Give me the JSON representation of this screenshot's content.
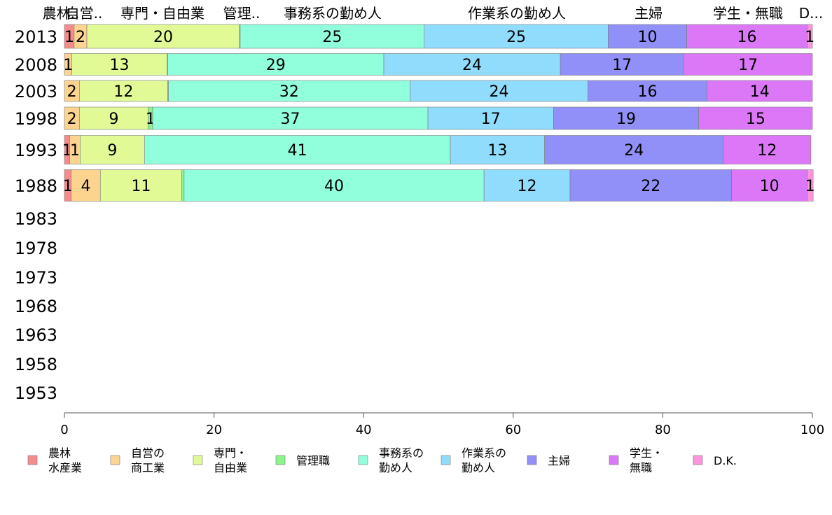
{
  "chart_data": {
    "type": "bar",
    "orientation": "horizontal",
    "stacked": true,
    "categories": [
      "2013",
      "2008",
      "2003",
      "1998",
      "1993",
      "1988",
      "1983",
      "1978",
      "1973",
      "1968",
      "1963",
      "1958",
      "1953"
    ],
    "top_labels": [
      "農林..",
      "自営..",
      "専門・自由業",
      "管理..",
      "事務系の勤め人",
      "作業系の勤め人",
      "主婦",
      "学生・無職",
      "D..."
    ],
    "series": [
      {
        "name": "農林\n水産業",
        "color": "#f58c8c",
        "values": [
          1.3,
          0,
          0,
          0,
          0.7,
          0.9,
          null,
          null,
          null,
          null,
          null,
          null,
          null
        ],
        "labels": [
          "1",
          "",
          "",
          "",
          "1",
          "1",
          "",
          "",
          "",
          "",
          "",
          "",
          ""
        ]
      },
      {
        "name": "自営の\n商工業",
        "color": "#fcd490",
        "values": [
          1.7,
          1.0,
          2.0,
          2.0,
          1.4,
          3.9,
          null,
          null,
          null,
          null,
          null,
          null,
          null
        ],
        "labels": [
          "2",
          "1",
          "2",
          "2",
          "1",
          "4",
          "",
          "",
          "",
          "",
          "",
          "",
          ""
        ]
      },
      {
        "name": "専門・\n自由業",
        "color": "#e2fa96",
        "values": [
          20.4,
          12.7,
          11.8,
          9.2,
          8.6,
          10.9,
          null,
          null,
          null,
          null,
          null,
          null,
          null
        ],
        "labels": [
          "20",
          "13",
          "12",
          "9",
          "9",
          "11",
          "",
          "",
          "",
          "",
          "",
          "",
          ""
        ]
      },
      {
        "name": "管理職",
        "color": "#8cf58c",
        "values": [
          0.1,
          0.1,
          0.1,
          0.6,
          0,
          0.3,
          null,
          null,
          null,
          null,
          null,
          null,
          null
        ],
        "labels": [
          "",
          "",
          "",
          "1",
          "",
          "",
          "",
          "",
          "",
          "",
          "",
          "",
          ""
        ]
      },
      {
        "name": "事務系の\n勤め人",
        "color": "#92ffdc",
        "values": [
          24.6,
          28.9,
          32.3,
          36.8,
          40.9,
          40.1,
          null,
          null,
          null,
          null,
          null,
          null,
          null
        ],
        "labels": [
          "25",
          "29",
          "32",
          "37",
          "41",
          "40",
          "",
          "",
          "",
          "",
          "",
          "",
          ""
        ]
      },
      {
        "name": "作業系の\n勤め人",
        "color": "#90dcfc",
        "values": [
          24.6,
          23.6,
          23.8,
          16.8,
          12.6,
          11.5,
          null,
          null,
          null,
          null,
          null,
          null,
          null
        ],
        "labels": [
          "25",
          "24",
          "24",
          "17",
          "13",
          "12",
          "",
          "",
          "",
          "",
          "",
          "",
          ""
        ]
      },
      {
        "name": "主婦",
        "color": "#9090f8",
        "values": [
          10.5,
          16.5,
          15.9,
          19.4,
          23.9,
          21.6,
          null,
          null,
          null,
          null,
          null,
          null,
          null
        ],
        "labels": [
          "10",
          "17",
          "16",
          "19",
          "24",
          "22",
          "",
          "",
          "",
          "",
          "",
          "",
          ""
        ]
      },
      {
        "name": "学生・\n無職",
        "color": "#dc78f8",
        "values": [
          16.1,
          17.2,
          14.1,
          15.2,
          11.7,
          10.1,
          null,
          null,
          null,
          null,
          null,
          null,
          null
        ],
        "labels": [
          "16",
          "17",
          "14",
          "15",
          "12",
          "10",
          "",
          "",
          "",
          "",
          "",
          "",
          ""
        ]
      },
      {
        "name": "D.K.",
        "color": "#fc96dc",
        "values": [
          0.7,
          0,
          0,
          0,
          0,
          0.8,
          null,
          null,
          null,
          null,
          null,
          null,
          null
        ],
        "labels": [
          "1",
          "",
          "",
          "",
          "",
          "1",
          "",
          "",
          "",
          "",
          "",
          "",
          ""
        ]
      }
    ],
    "xlim": [
      0,
      100
    ],
    "xticks": [
      0,
      20,
      40,
      60,
      80,
      100
    ],
    "title": "",
    "xlabel": "",
    "ylabel": "",
    "grid": false,
    "legend": "bottom"
  }
}
